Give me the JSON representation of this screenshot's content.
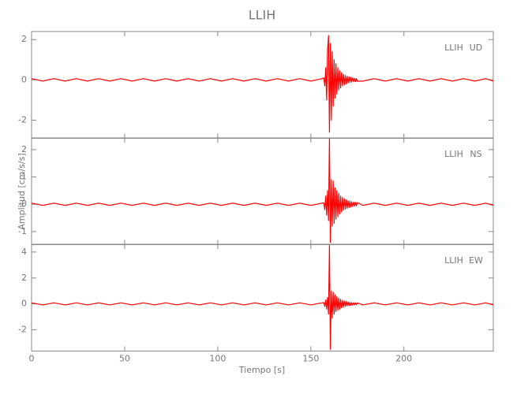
{
  "title": "LLIH",
  "x_label": "Tiempo [s]",
  "y_label": "Amplitud [cm/s/s]",
  "chart_data": [
    {
      "type": "line",
      "station": "LLIH",
      "component": "UD",
      "x": [
        0,
        6,
        12,
        18,
        24,
        30,
        36,
        42,
        48,
        54,
        60,
        66,
        72,
        78,
        84,
        90,
        96,
        102,
        108,
        114,
        120,
        126,
        132,
        138,
        144,
        150,
        156,
        157,
        157.5,
        158,
        158.5,
        159,
        159.5,
        160,
        160.5,
        161,
        161.5,
        162,
        162.5,
        163,
        163.5,
        164,
        164.5,
        165,
        165.5,
        166,
        166.5,
        167,
        167.5,
        168,
        168.5,
        169,
        169.5,
        170,
        170.5,
        171,
        171.5,
        172,
        172.5,
        173,
        173.5,
        174,
        174.5,
        175,
        178,
        184,
        190,
        196,
        202,
        208,
        214,
        220,
        226,
        232,
        238,
        244,
        248
      ],
      "series": [
        {
          "color": "#ff0000",
          "values": [
            0.06,
            -0.06,
            0.06,
            -0.06,
            0.06,
            -0.06,
            0.06,
            -0.06,
            0.06,
            -0.06,
            0.06,
            -0.06,
            0.06,
            -0.06,
            0.06,
            -0.06,
            0.06,
            -0.06,
            0.06,
            -0.06,
            0.06,
            -0.06,
            0.06,
            -0.06,
            0.06,
            -0.06,
            0.06,
            0.1,
            -0.3,
            0.6,
            -1.0,
            1.5,
            2.2,
            -2.6,
            1.8,
            -2.0,
            1.4,
            -1.3,
            1.0,
            -0.9,
            0.8,
            -0.7,
            0.6,
            -0.5,
            0.45,
            -0.4,
            0.35,
            -0.3,
            0.28,
            -0.25,
            0.22,
            -0.2,
            0.18,
            -0.16,
            0.15,
            -0.13,
            0.12,
            -0.11,
            0.1,
            -0.09,
            0.08,
            -0.08,
            0.07,
            -0.07,
            -0.06,
            0.06,
            -0.06,
            0.06,
            -0.06,
            0.06,
            -0.06,
            0.06,
            -0.06,
            0.06,
            -0.06,
            0.06,
            -0.06
          ]
        }
      ],
      "xlim": [
        0,
        248
      ],
      "xticks": [
        0,
        50,
        100,
        150,
        200
      ],
      "ylim": [
        -2.9,
        2.4
      ],
      "yticks": [
        2,
        0,
        -2
      ]
    },
    {
      "type": "line",
      "station": "LLIH",
      "component": "NS",
      "x": [
        0,
        6,
        12,
        18,
        24,
        30,
        36,
        42,
        48,
        54,
        60,
        66,
        72,
        78,
        84,
        90,
        96,
        102,
        108,
        114,
        120,
        126,
        132,
        138,
        144,
        150,
        156,
        157,
        157.5,
        158,
        158.5,
        159,
        159.5,
        160,
        160.5,
        161,
        161.5,
        162,
        162.5,
        163,
        163.5,
        164,
        164.5,
        165,
        165.5,
        166,
        166.5,
        167,
        167.5,
        168,
        168.5,
        169,
        169.5,
        170,
        170.5,
        171,
        171.5,
        172,
        172.5,
        173,
        173.5,
        174,
        174.5,
        175,
        178,
        184,
        190,
        196,
        202,
        208,
        214,
        220,
        226,
        232,
        238,
        244,
        248
      ],
      "series": [
        {
          "color": "#ff0000",
          "values": [
            0.04,
            -0.04,
            0.04,
            -0.04,
            0.04,
            -0.04,
            0.04,
            -0.04,
            0.04,
            -0.04,
            0.04,
            -0.04,
            0.04,
            -0.04,
            0.04,
            -0.04,
            0.04,
            -0.04,
            0.04,
            -0.04,
            0.04,
            -0.04,
            0.04,
            -0.04,
            0.04,
            -0.04,
            0.04,
            0.05,
            -0.2,
            0.3,
            -0.4,
            0.5,
            -0.6,
            2.4,
            -1.4,
            0.9,
            -0.8,
            0.85,
            -0.7,
            0.6,
            -0.55,
            0.5,
            -0.45,
            0.4,
            -0.35,
            0.3,
            -0.28,
            0.25,
            -0.22,
            0.2,
            -0.18,
            0.16,
            -0.15,
            0.13,
            -0.12,
            0.11,
            -0.1,
            0.09,
            -0.08,
            0.08,
            -0.07,
            0.07,
            -0.06,
            0.06,
            -0.04,
            0.04,
            -0.04,
            0.04,
            -0.04,
            0.04,
            -0.04,
            0.04,
            -0.04,
            0.04,
            -0.04,
            0.04,
            -0.04
          ]
        }
      ],
      "xlim": [
        0,
        248
      ],
      "xticks": [
        0,
        50,
        100,
        150,
        200
      ],
      "ylim": [
        -1.48,
        2.43
      ],
      "yticks": [
        2,
        1,
        0,
        -1
      ]
    },
    {
      "type": "line",
      "station": "LLIH",
      "component": "EW",
      "x": [
        0,
        6,
        12,
        18,
        24,
        30,
        36,
        42,
        48,
        54,
        60,
        66,
        72,
        78,
        84,
        90,
        96,
        102,
        108,
        114,
        120,
        126,
        132,
        138,
        144,
        150,
        156,
        157,
        157.5,
        158,
        158.5,
        159,
        159.5,
        160,
        160.5,
        161,
        161.5,
        162,
        162.5,
        163,
        163.5,
        164,
        164.5,
        165,
        165.5,
        166,
        166.5,
        167,
        167.5,
        168,
        168.5,
        169,
        169.5,
        170,
        170.5,
        171,
        171.5,
        172,
        172.5,
        173,
        173.5,
        174,
        174.5,
        175,
        178,
        184,
        190,
        196,
        202,
        208,
        214,
        220,
        226,
        232,
        238,
        244,
        248
      ],
      "series": [
        {
          "color": "#ff0000",
          "values": [
            0.08,
            -0.08,
            0.08,
            -0.08,
            0.08,
            -0.08,
            0.08,
            -0.08,
            0.08,
            -0.08,
            0.08,
            -0.08,
            0.08,
            -0.08,
            0.08,
            -0.08,
            0.08,
            -0.08,
            0.08,
            -0.08,
            0.08,
            -0.08,
            0.08,
            -0.08,
            0.08,
            -0.08,
            0.08,
            0.1,
            -0.2,
            0.3,
            -0.4,
            0.5,
            -0.8,
            4.5,
            -3.5,
            1.0,
            -1.1,
            0.9,
            -0.8,
            0.7,
            -0.6,
            0.55,
            -0.5,
            0.45,
            -0.4,
            0.35,
            -0.3,
            0.28,
            -0.25,
            0.22,
            -0.2,
            0.18,
            -0.16,
            0.15,
            -0.13,
            0.12,
            -0.11,
            0.1,
            -0.09,
            0.09,
            -0.08,
            0.08,
            -0.07,
            0.07,
            -0.08,
            0.08,
            -0.08,
            0.08,
            -0.08,
            0.08,
            -0.08,
            0.08,
            -0.08,
            0.08,
            -0.08,
            0.08,
            -0.08
          ]
        }
      ],
      "xlim": [
        0,
        248
      ],
      "xticks": [
        0,
        50,
        100,
        150,
        200
      ],
      "ylim": [
        -3.64,
        4.6
      ],
      "yticks": [
        4,
        2,
        0,
        -2
      ]
    }
  ]
}
